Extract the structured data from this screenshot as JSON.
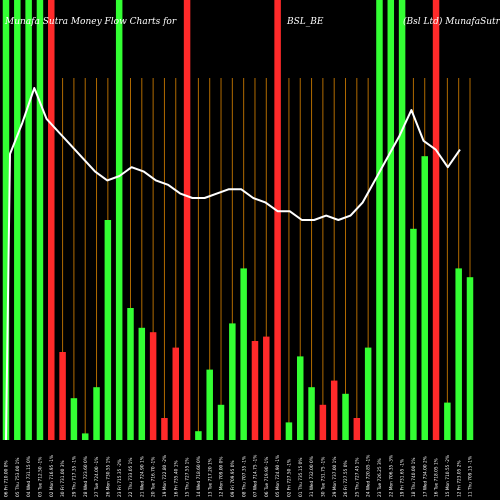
{
  "chart_data": {
    "type": "bar",
    "title_left": "Munafa Sutra  Money Flow  Charts for",
    "title_center": "BSL_BE",
    "title_right": "(Bsl Ltd)  MunafaSutra.com",
    "colors": {
      "background": "#000000",
      "up": "#33ff33",
      "down": "#ff2a2a",
      "grid": "#b06a00",
      "line": "#ffffff",
      "text": "#ffffff"
    },
    "bars": [
      {
        "label": "06 Fri 710.00 0%",
        "dir": "up",
        "value": 100
      },
      {
        "label": "05 Thu 753.00 1%",
        "dir": "up",
        "value": 100
      },
      {
        "label": "04 Wed 731.15 0%",
        "dir": "up",
        "value": 100
      },
      {
        "label": "03 Tue 712.50 -1%",
        "dir": "up",
        "value": 100
      },
      {
        "label": "02 Mon 716.95 -1%",
        "dir": "down",
        "value": 100
      },
      {
        "label": "30 Fri 731.00 3%",
        "dir": "down",
        "value": 20
      },
      {
        "label": "29 Thu 717.35 -1%",
        "dir": "up",
        "value": 9.5
      },
      {
        "label": "28 Wed 723.60 0%",
        "dir": "up",
        "value": 1.5
      },
      {
        "label": "27 Tue 724.00 -1%",
        "dir": "up",
        "value": 12
      },
      {
        "label": "26 Mon 730.55 1%",
        "dir": "up",
        "value": 50
      },
      {
        "label": "23 Fri 715.35 -2%",
        "dir": "up",
        "value": 100
      },
      {
        "label": "22 Thu 733.05 1%",
        "dir": "up",
        "value": 30
      },
      {
        "label": "21 Wed 724.90 1%",
        "dir": "up",
        "value": 25.5
      },
      {
        "label": "20 Tue 716.70 -1%",
        "dir": "down",
        "value": 24.5
      },
      {
        "label": "19 Mon 722.80 -2%",
        "dir": "down",
        "value": 5
      },
      {
        "label": "16 Fri 735.40 1%",
        "dir": "down",
        "value": 21
      },
      {
        "label": "15 Thu 727.55 1%",
        "dir": "down",
        "value": 100
      },
      {
        "label": "14 Wed 718.60 0%",
        "dir": "up",
        "value": 2
      },
      {
        "label": "13 Tue 717.20 1%",
        "dir": "up",
        "value": 16
      },
      {
        "label": "12 Mon 709.00 0%",
        "dir": "up",
        "value": 8
      },
      {
        "label": "09 Fri 709.95 0%",
        "dir": "up",
        "value": 26.5
      },
      {
        "label": "08 Thu 707.35 -1%",
        "dir": "up",
        "value": 39
      },
      {
        "label": "07 Wed 714.75 -1%",
        "dir": "down",
        "value": 22.5
      },
      {
        "label": "06 Tue 719.90 -1%",
        "dir": "down",
        "value": 23.5
      },
      {
        "label": "05 Mon 724.90 -1%",
        "dir": "down",
        "value": 100
      },
      {
        "label": "02 Fri 727.50 -1%",
        "dir": "up",
        "value": 4
      },
      {
        "label": "01 Thu 735.15 0%",
        "dir": "up",
        "value": 19
      },
      {
        "label": "31 Wed 732.00 0%",
        "dir": "up",
        "value": 12
      },
      {
        "label": "30 Tue 731.75 -1%",
        "dir": "down",
        "value": 8
      },
      {
        "label": "29 Mon 737.00 1%",
        "dir": "down",
        "value": 13.5
      },
      {
        "label": "26 Fri 727.55 0%",
        "dir": "up",
        "value": 10.5
      },
      {
        "label": "25 Thu 727.45 1%",
        "dir": "down",
        "value": 5
      },
      {
        "label": "24 Wed 720.85 -1%",
        "dir": "up",
        "value": 21
      },
      {
        "label": "23 Tue 726.25 3%",
        "dir": "up",
        "value": 100
      },
      {
        "label": "22 Mon 706.35 -3%",
        "dir": "up",
        "value": 100
      },
      {
        "label": "19 Fri 731.65 -1%",
        "dir": "up",
        "value": 100
      },
      {
        "label": "18 Thu 740.00 1%",
        "dir": "up",
        "value": 48
      },
      {
        "label": "17 Wed 734.00 2%",
        "dir": "up",
        "value": 64.5
      },
      {
        "label": "16 Tue 718.05 1%",
        "dir": "down",
        "value": 100
      },
      {
        "label": "15 Mon 710.55 -2%",
        "dir": "up",
        "value": 8.5
      },
      {
        "label": "12 Fri 723.05 2%",
        "dir": "up",
        "value": 39
      },
      {
        "label": "11 Thu 709.15 -1%",
        "dir": "up",
        "value": 37
      }
    ],
    "flow_line": [
      65,
      72,
      80,
      73,
      70,
      67,
      64,
      61,
      59,
      60,
      62,
      61,
      59,
      58,
      56,
      55,
      55,
      56,
      57,
      57,
      55,
      54,
      52,
      52,
      50,
      50,
      51,
      50,
      51,
      54,
      59,
      64,
      69,
      75,
      68,
      66,
      62,
      66
    ]
  }
}
